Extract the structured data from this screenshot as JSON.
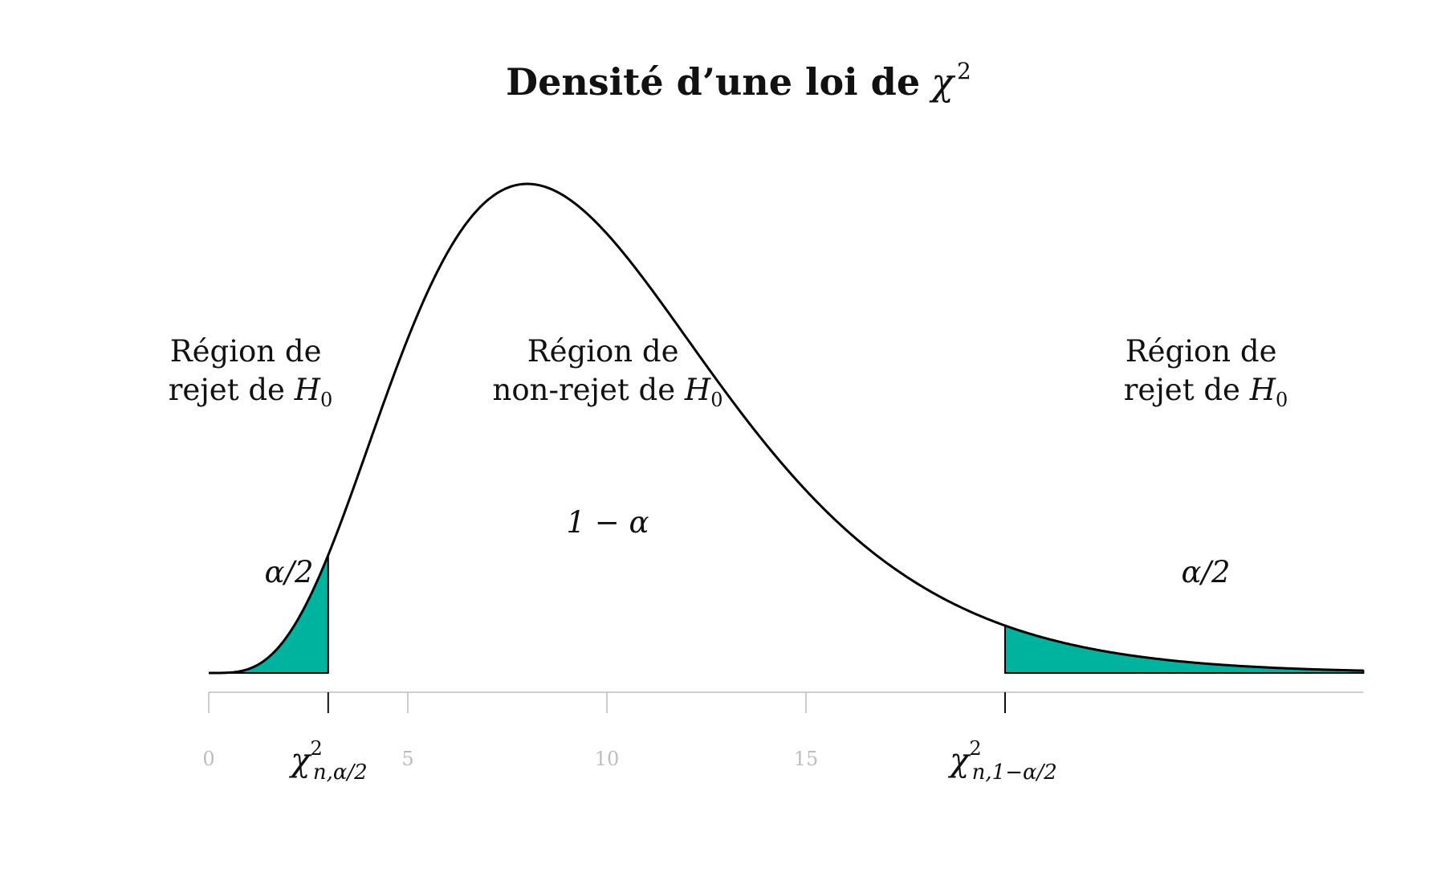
{
  "chart_data": {
    "type": "area",
    "title": "Densité d’une loi de",
    "title_symbol": "χ",
    "title_superscript": "2",
    "distribution": {
      "name": "chi-squared",
      "degrees_of_freedom": 10
    },
    "xlim": [
      0,
      29
    ],
    "x_ticks": [
      "0",
      "5",
      "10",
      "15"
    ],
    "x_tick_values": [
      0,
      5,
      10,
      15
    ],
    "critical_values": [
      {
        "x": 3,
        "symbol": "χ",
        "sup": "2",
        "sub": "n,α/2"
      },
      {
        "x": 20,
        "symbol": "χ",
        "sup": "2",
        "sub": "n,1−α/2"
      }
    ],
    "shaded_regions": [
      {
        "from": 0,
        "to": 3,
        "color": "#00b39e"
      },
      {
        "from": 20,
        "to": 29,
        "color": "#00b39e"
      }
    ],
    "curve_color": "#000000",
    "axis_color": "#bdbdbd",
    "region_labels": {
      "left": {
        "line1": "Région de",
        "line2_text": "rejet de",
        "line2_var": "H",
        "line2_sub": "0"
      },
      "middle": {
        "line1": "Région de",
        "line2_text": "non-rejet de",
        "line2_var": "H",
        "line2_sub": "0"
      },
      "right": {
        "line1": "Région de",
        "line2_text": "rejet de",
        "line2_var": "H",
        "line2_sub": "0"
      }
    },
    "area_labels": {
      "left": "α/2",
      "middle": "1 − α",
      "right": "α/2"
    }
  }
}
